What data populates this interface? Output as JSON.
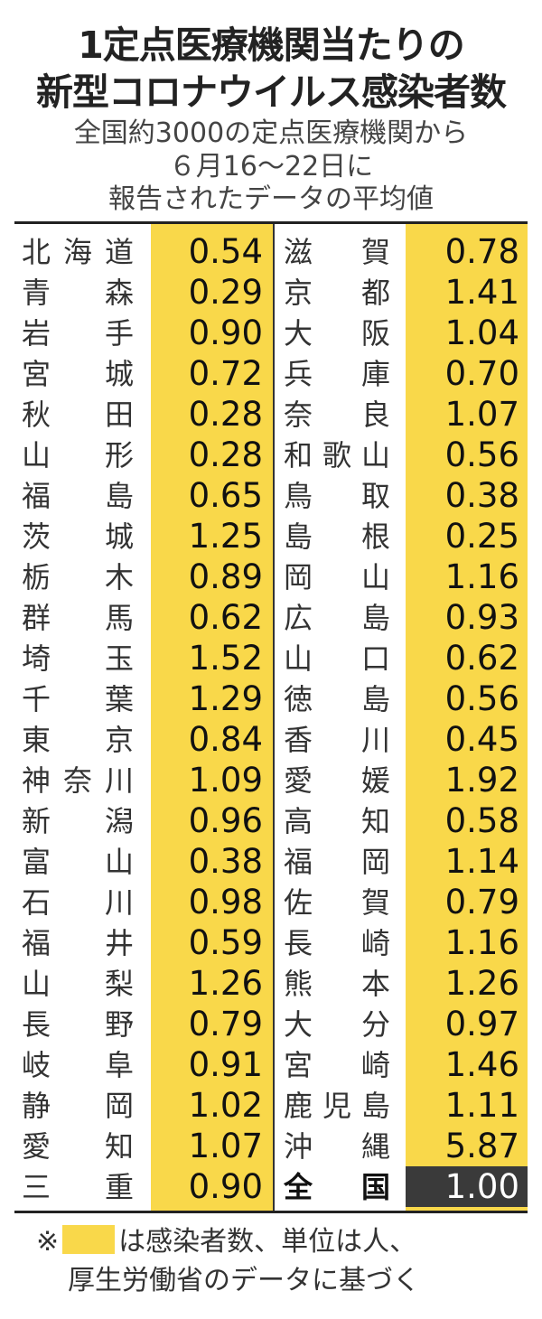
{
  "title": {
    "line1": "1定点医療機関当たりの",
    "line2": "新型コロナウイルス感染者数"
  },
  "subtitle": {
    "line1": "全国約3000の定点医療機関から",
    "line2": "６月16〜22日に",
    "line3": "報告されたデータの平均値"
  },
  "colors": {
    "highlight": "#f9d84a",
    "national_bg": "#3a3a3a"
  },
  "left": [
    {
      "name": "北海道",
      "value": "0.54"
    },
    {
      "name": "青森",
      "value": "0.29"
    },
    {
      "name": "岩手",
      "value": "0.90"
    },
    {
      "name": "宮城",
      "value": "0.72"
    },
    {
      "name": "秋田",
      "value": "0.28"
    },
    {
      "name": "山形",
      "value": "0.28"
    },
    {
      "name": "福島",
      "value": "0.65"
    },
    {
      "name": "茨城",
      "value": "1.25"
    },
    {
      "name": "栃木",
      "value": "0.89"
    },
    {
      "name": "群馬",
      "value": "0.62"
    },
    {
      "name": "埼玉",
      "value": "1.52"
    },
    {
      "name": "千葉",
      "value": "1.29"
    },
    {
      "name": "東京",
      "value": "0.84"
    },
    {
      "name": "神奈川",
      "value": "1.09"
    },
    {
      "name": "新潟",
      "value": "0.96"
    },
    {
      "name": "富山",
      "value": "0.38"
    },
    {
      "name": "石川",
      "value": "0.98"
    },
    {
      "name": "福井",
      "value": "0.59"
    },
    {
      "name": "山梨",
      "value": "1.26"
    },
    {
      "name": "長野",
      "value": "0.79"
    },
    {
      "name": "岐阜",
      "value": "0.91"
    },
    {
      "name": "静岡",
      "value": "1.02"
    },
    {
      "name": "愛知",
      "value": "1.07"
    },
    {
      "name": "三重",
      "value": "0.90"
    }
  ],
  "right": [
    {
      "name": "滋賀",
      "value": "0.78"
    },
    {
      "name": "京都",
      "value": "1.41"
    },
    {
      "name": "大阪",
      "value": "1.04"
    },
    {
      "name": "兵庫",
      "value": "0.70"
    },
    {
      "name": "奈良",
      "value": "1.07"
    },
    {
      "name": "和歌山",
      "value": "0.56"
    },
    {
      "name": "鳥取",
      "value": "0.38"
    },
    {
      "name": "島根",
      "value": "0.25"
    },
    {
      "name": "岡山",
      "value": "1.16"
    },
    {
      "name": "広島",
      "value": "0.93"
    },
    {
      "name": "山口",
      "value": "0.62"
    },
    {
      "name": "徳島",
      "value": "0.56"
    },
    {
      "name": "香川",
      "value": "0.45"
    },
    {
      "name": "愛媛",
      "value": "1.92"
    },
    {
      "name": "高知",
      "value": "0.58"
    },
    {
      "name": "福岡",
      "value": "1.14"
    },
    {
      "name": "佐賀",
      "value": "0.79"
    },
    {
      "name": "長崎",
      "value": "1.16"
    },
    {
      "name": "熊本",
      "value": "1.26"
    },
    {
      "name": "大分",
      "value": "0.97"
    },
    {
      "name": "宮崎",
      "value": "1.46"
    },
    {
      "name": "鹿児島",
      "value": "1.11"
    },
    {
      "name": "沖縄",
      "value": "5.87"
    }
  ],
  "national": {
    "name": "全国",
    "value": "1.00"
  },
  "note": {
    "mark": "※",
    "line1": "は感染者数、単位は人、",
    "line2": "厚生労働省のデータに基づく"
  }
}
